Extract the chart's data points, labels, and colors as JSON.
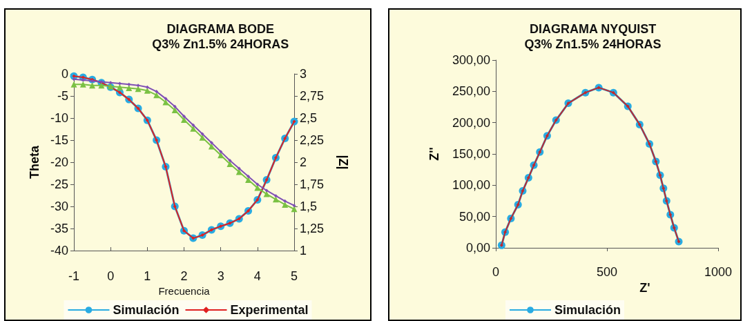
{
  "chart_data": [
    {
      "type": "line",
      "title": "DIAGRAMA BODE",
      "subtitle": "Q3% Zn1.5% 24HORAS",
      "xlabel": "Frecuencia",
      "ylabel": "Theta",
      "y2label": "|Z|",
      "x": [
        -1,
        -0.75,
        -0.5,
        -0.25,
        0,
        0.25,
        0.5,
        0.75,
        1,
        1.25,
        1.5,
        1.75,
        2,
        2.25,
        2.5,
        2.75,
        3,
        3.25,
        3.5,
        3.75,
        4,
        4.25,
        4.5,
        4.75,
        5
      ],
      "series": [
        {
          "name": "Simulación",
          "color": "#29abe2",
          "marker": "circle",
          "values": [
            -0.5,
            -0.8,
            -1.3,
            -2,
            -3,
            -4.2,
            -5.8,
            -7.8,
            -10.5,
            -15,
            -21,
            -30,
            -35.5,
            -37.2,
            -36.5,
            -35.3,
            -34.5,
            -33.8,
            -32.8,
            -31,
            -28.5,
            -24,
            -19,
            -14.6,
            -10.8
          ]
        },
        {
          "name": "Experimental",
          "color": "#e02020",
          "marker": "diamond",
          "values": [
            -0.5,
            -0.8,
            -1.3,
            -2,
            -3,
            -4.2,
            -5.8,
            -7.8,
            -10.5,
            -15,
            -21,
            -30,
            -35.5,
            -37.2,
            -36.5,
            -35.3,
            -34.5,
            -33.8,
            -32.8,
            -31,
            -28.5,
            -24,
            -19,
            -14.6,
            -10.8
          ]
        },
        {
          "color": "#7ac143",
          "marker": "triangle",
          "axis": "y2",
          "values": [
            2.88,
            2.88,
            2.87,
            2.87,
            2.86,
            2.85,
            2.84,
            2.83,
            2.81,
            2.76,
            2.68,
            2.59,
            2.48,
            2.38,
            2.28,
            2.18,
            2.08,
            1.98,
            1.89,
            1.8,
            1.71,
            1.64,
            1.58,
            1.52,
            1.47
          ]
        },
        {
          "color": "#7f4fb5",
          "marker": "diamond",
          "axis": "y2",
          "values": [
            2.94,
            2.93,
            2.92,
            2.91,
            2.9,
            2.89,
            2.88,
            2.87,
            2.85,
            2.8,
            2.72,
            2.63,
            2.52,
            2.42,
            2.32,
            2.22,
            2.12,
            2.02,
            1.93,
            1.84,
            1.75,
            1.68,
            1.62,
            1.56,
            1.51
          ]
        }
      ],
      "xlim": [
        -1,
        5
      ],
      "xticks": [
        -1,
        0,
        1,
        2,
        3,
        4,
        5
      ],
      "ylim": [
        -40,
        0
      ],
      "yticks": [
        -40,
        -35,
        -30,
        -25,
        -20,
        -15,
        -10,
        -5,
        0
      ],
      "y2lim": [
        1,
        3
      ],
      "y2ticks": [
        1,
        {
          "value": 1.25,
          "label": "1,25"
        },
        {
          "value": 1.5,
          "label": "1,5"
        },
        {
          "value": 1.75,
          "label": "1,75"
        },
        2,
        {
          "value": 2.25,
          "label": "2,25"
        },
        {
          "value": 2.5,
          "label": "2,5"
        },
        {
          "value": 2.75,
          "label": "2,75"
        },
        3
      ],
      "grid": false,
      "legend": "bottom"
    },
    {
      "type": "line",
      "title": "DIAGRAMA NYQUIST",
      "subtitle": "Q3% Zn1.5% 24HORAS",
      "xlabel": "Z'",
      "ylabel": "Z''",
      "series": [
        {
          "name": "Simulación",
          "color": "#29abe2",
          "marker": "circle",
          "x": [
            26,
            42,
            68,
            100,
            121,
            147,
            171,
            198,
            231,
            271,
            326,
            403,
            463,
            529,
            594,
            647,
            691,
            720,
            739,
            754,
            768,
            785,
            802,
            823
          ],
          "values": [
            4,
            25,
            47,
            69,
            91,
            112,
            132,
            153,
            179,
            204,
            231,
            248,
            256,
            248,
            226,
            197,
            166,
            138,
            116,
            95,
            75,
            53,
            32,
            10
          ]
        },
        {
          "color": "#c0282d",
          "marker": "diamond",
          "x": [
            26,
            42,
            68,
            100,
            121,
            147,
            171,
            198,
            231,
            271,
            326,
            403,
            463,
            529,
            594,
            647,
            691,
            720,
            739,
            754,
            768,
            785,
            802,
            823
          ],
          "values": [
            4,
            25,
            47,
            69,
            91,
            112,
            132,
            153,
            179,
            204,
            231,
            248,
            256,
            248,
            226,
            197,
            166,
            138,
            116,
            95,
            75,
            53,
            32,
            10
          ]
        }
      ],
      "xlim": [
        0,
        1000
      ],
      "xticks": [
        0,
        500,
        1000
      ],
      "ylim": [
        0,
        300
      ],
      "yticks": [
        {
          "value": 0,
          "label": "0,00"
        },
        {
          "value": 50,
          "label": "50,00"
        },
        {
          "value": 100,
          "label": "100,00"
        },
        {
          "value": 150,
          "label": "150,00"
        },
        {
          "value": 200,
          "label": "200,00"
        },
        {
          "value": 250,
          "label": "250,00"
        },
        {
          "value": 300,
          "label": "300,00"
        }
      ],
      "grid": false,
      "legend": "bottom"
    }
  ]
}
